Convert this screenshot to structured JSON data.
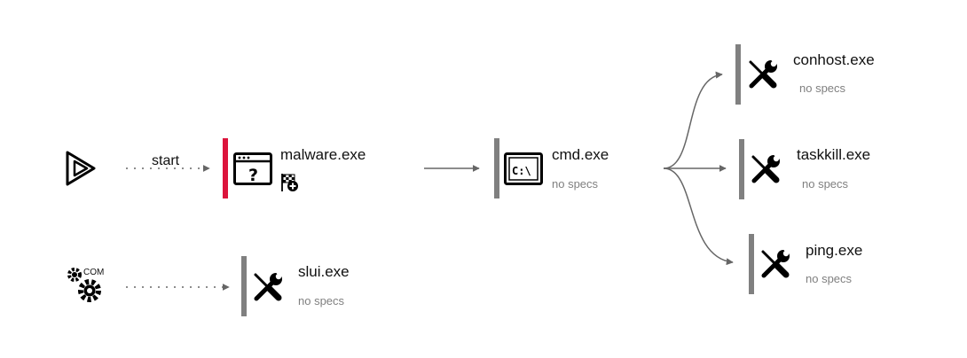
{
  "colors": {
    "accent_bar": "#dc143c",
    "neutral_bar": "#808080",
    "edge": "#666666",
    "icon": "#000000"
  },
  "triggers": {
    "start": {
      "icon": "play-icon",
      "edge_label": "start"
    },
    "com": {
      "icon": "gears-icon",
      "label": "COM"
    }
  },
  "nodes": {
    "malware": {
      "title": "malware.exe",
      "subtitle": "",
      "icon": "window-question-icon",
      "badge": "checkered-flag-plus-icon",
      "bar": "accent_bar"
    },
    "cmd": {
      "title": "cmd.exe",
      "subtitle": "no specs",
      "icon": "terminal-icon",
      "bar": "neutral_bar"
    },
    "conhost": {
      "title": "conhost.exe",
      "subtitle": "no specs",
      "icon": "tools-icon",
      "bar": "neutral_bar"
    },
    "taskkill": {
      "title": "taskkill.exe",
      "subtitle": "no specs",
      "icon": "tools-icon",
      "bar": "neutral_bar"
    },
    "ping": {
      "title": "ping.exe",
      "subtitle": "no specs",
      "icon": "tools-icon",
      "bar": "neutral_bar"
    },
    "slui": {
      "title": "slui.exe",
      "subtitle": "no specs",
      "icon": "tools-icon",
      "bar": "neutral_bar"
    }
  },
  "edges": [
    {
      "from": "start",
      "to": "malware",
      "style": "dotted",
      "label": "start"
    },
    {
      "from": "com",
      "to": "slui",
      "style": "dotted"
    },
    {
      "from": "malware",
      "to": "cmd",
      "style": "solid"
    },
    {
      "from": "cmd",
      "to": "conhost",
      "style": "solid"
    },
    {
      "from": "cmd",
      "to": "taskkill",
      "style": "solid"
    },
    {
      "from": "cmd",
      "to": "ping",
      "style": "solid"
    }
  ]
}
